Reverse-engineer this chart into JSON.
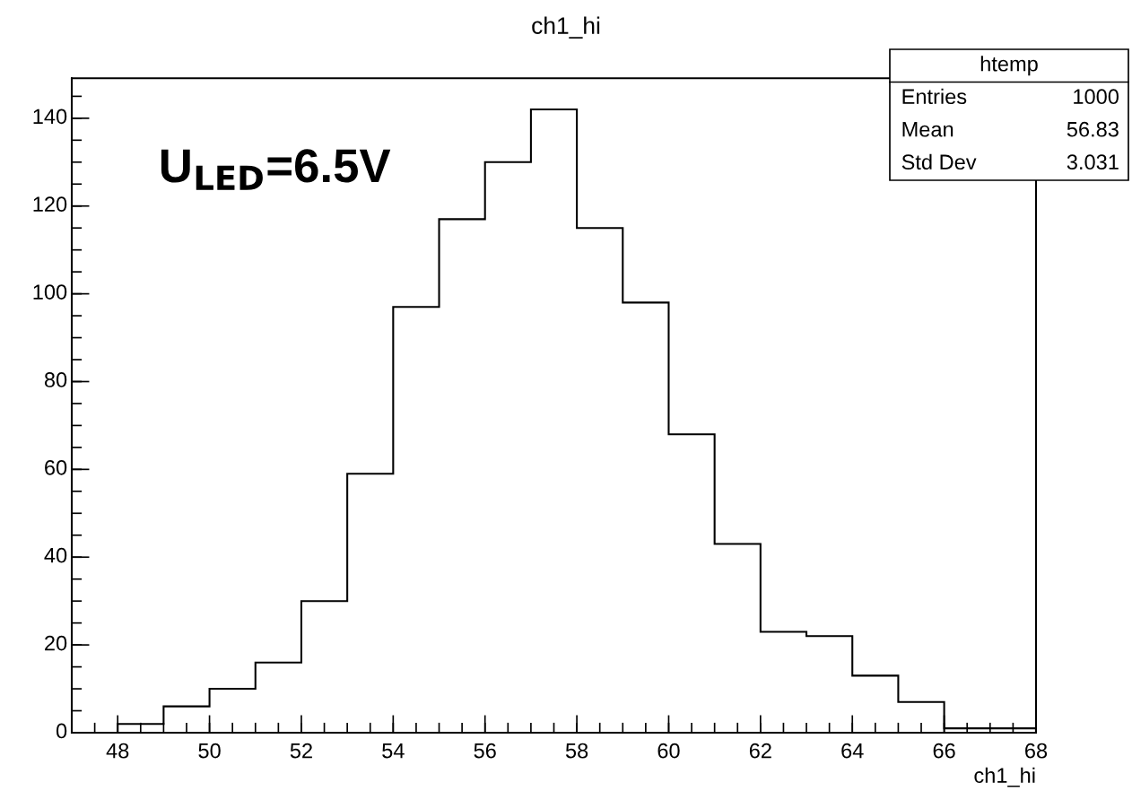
{
  "chart_data": {
    "type": "histogram",
    "title": "ch1_hi",
    "xlabel": "ch1_hi",
    "color": "#000000",
    "bins": [
      48,
      49,
      50,
      51,
      52,
      53,
      54,
      55,
      56,
      57,
      58,
      59,
      60,
      61,
      62,
      63,
      64,
      65,
      66,
      67,
      68
    ],
    "values": [
      2,
      6,
      10,
      16,
      30,
      59,
      97,
      117,
      130,
      142,
      115,
      98,
      68,
      43,
      23,
      22,
      13,
      7,
      1,
      1
    ],
    "xlim": [
      47,
      68
    ],
    "ylim": [
      0,
      149.1
    ],
    "xticks": [
      48,
      50,
      52,
      54,
      56,
      58,
      60,
      62,
      64,
      66,
      68
    ],
    "yticks": [
      0,
      20,
      40,
      60,
      80,
      100,
      120,
      140
    ],
    "grid": false,
    "annotations": [
      "U$_{LED}$=6.5V",
      "htemp",
      "Entries",
      "1000",
      "Mean",
      "56.83",
      "Std Dev",
      "3.031"
    ]
  }
}
